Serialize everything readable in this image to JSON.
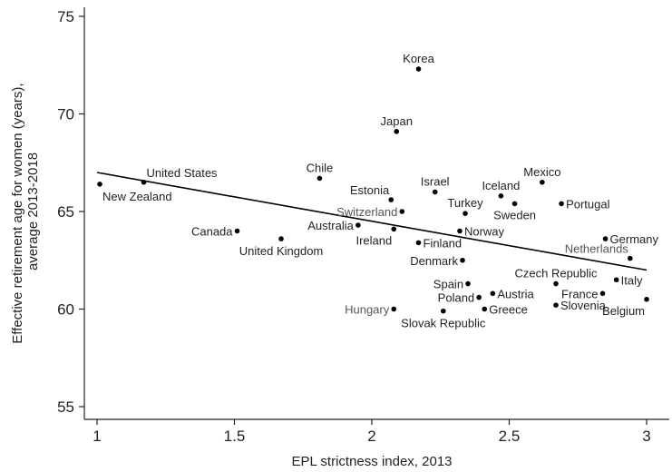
{
  "chart_data": {
    "type": "scatter",
    "xlabel": "EPL strictness index, 2013",
    "ylabel_lines": [
      "Effective retirement age for women (years),",
      "average 2013-2018"
    ],
    "xlim": [
      1,
      3
    ],
    "ylim": [
      55,
      75
    ],
    "x_ticks": [
      1,
      1.5,
      2,
      2.5,
      3
    ],
    "x_tick_labels": [
      "1",
      "1.5",
      "2",
      "2.5",
      "3"
    ],
    "y_ticks": [
      55,
      60,
      65,
      70,
      75
    ],
    "y_tick_labels": [
      "55",
      "60",
      "65",
      "70",
      "75"
    ],
    "grid": false,
    "legend": "none",
    "colors": {
      "points": "#000000",
      "trend": "#000000",
      "label": "#222222",
      "label_gray": "#555555"
    },
    "trend_line": {
      "x": [
        1,
        3
      ],
      "y": [
        67.0,
        62.0
      ]
    },
    "points": [
      {
        "label": "New Zealand",
        "x": 1.01,
        "y": 66.4,
        "anchor": "below-right"
      },
      {
        "label": "United States",
        "x": 1.17,
        "y": 66.5,
        "anchor": "above-right"
      },
      {
        "label": "Canada",
        "x": 1.51,
        "y": 64.0,
        "anchor": "left"
      },
      {
        "label": "United Kingdom",
        "x": 1.67,
        "y": 63.6,
        "anchor": "below-center"
      },
      {
        "label": "Chile",
        "x": 1.81,
        "y": 66.7,
        "anchor": "above"
      },
      {
        "label": "Australia",
        "x": 1.95,
        "y": 64.3,
        "anchor": "left"
      },
      {
        "label": "Estonia",
        "x": 2.07,
        "y": 65.6,
        "anchor": "above-left"
      },
      {
        "label": "Ireland",
        "x": 2.08,
        "y": 64.1,
        "anchor": "below-left"
      },
      {
        "label": "Switzerland",
        "x": 2.11,
        "y": 65.0,
        "anchor": "left",
        "gray": true
      },
      {
        "label": "Japan",
        "x": 2.09,
        "y": 69.1,
        "anchor": "above"
      },
      {
        "label": "Korea",
        "x": 2.17,
        "y": 72.3,
        "anchor": "above"
      },
      {
        "label": "Finland",
        "x": 2.17,
        "y": 63.4,
        "anchor": "right"
      },
      {
        "label": "Israel",
        "x": 2.23,
        "y": 66.0,
        "anchor": "above"
      },
      {
        "label": "Hungary",
        "x": 2.08,
        "y": 60.0,
        "anchor": "left",
        "gray": true
      },
      {
        "label": "Slovak Republic",
        "x": 2.26,
        "y": 59.9,
        "anchor": "below-center"
      },
      {
        "label": "Denmark",
        "x": 2.33,
        "y": 62.5,
        "anchor": "left"
      },
      {
        "label": "Turkey",
        "x": 2.34,
        "y": 64.9,
        "anchor": "above"
      },
      {
        "label": "Norway",
        "x": 2.32,
        "y": 64.0,
        "anchor": "right"
      },
      {
        "label": "Spain",
        "x": 2.35,
        "y": 61.3,
        "anchor": "left"
      },
      {
        "label": "Poland",
        "x": 2.39,
        "y": 60.6,
        "anchor": "left"
      },
      {
        "label": "Greece",
        "x": 2.41,
        "y": 60.0,
        "anchor": "right"
      },
      {
        "label": "Austria",
        "x": 2.44,
        "y": 60.8,
        "anchor": "right"
      },
      {
        "label": "Iceland",
        "x": 2.47,
        "y": 65.8,
        "anchor": "above"
      },
      {
        "label": "Sweden",
        "x": 2.52,
        "y": 65.4,
        "anchor": "below"
      },
      {
        "label": "Mexico",
        "x": 2.62,
        "y": 66.5,
        "anchor": "above"
      },
      {
        "label": "Czech Republic",
        "x": 2.67,
        "y": 61.3,
        "anchor": "above-center"
      },
      {
        "label": "Slovenia",
        "x": 2.67,
        "y": 60.2,
        "anchor": "right"
      },
      {
        "label": "Portugal",
        "x": 2.69,
        "y": 65.4,
        "anchor": "right"
      },
      {
        "label": "France",
        "x": 2.84,
        "y": 60.8,
        "anchor": "left"
      },
      {
        "label": "Germany",
        "x": 2.85,
        "y": 63.6,
        "anchor": "right"
      },
      {
        "label": "Italy",
        "x": 2.89,
        "y": 61.5,
        "anchor": "right"
      },
      {
        "label": "Netherlands",
        "x": 2.94,
        "y": 62.6,
        "anchor": "above-left",
        "gray": true
      },
      {
        "label": "Belgium",
        "x": 3.0,
        "y": 60.5,
        "anchor": "below-left"
      }
    ]
  }
}
